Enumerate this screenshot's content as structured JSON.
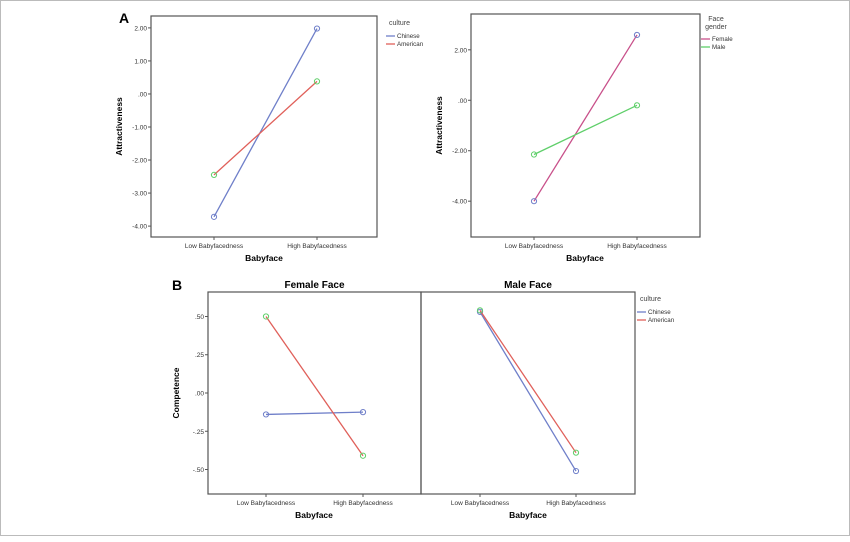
{
  "panel_labels": {
    "a": "A",
    "b": "B"
  },
  "chart_data": [
    {
      "type": "line",
      "panel": "A",
      "title": "",
      "xlabel": "Babyface",
      "ylabel": "Attractiveness",
      "categories": [
        "Low Babyfacedness",
        "High Babyfacedness"
      ],
      "yticks": [
        "2.00",
        "1.00",
        ".00",
        "-1.00",
        "-2.00",
        "-3.00",
        "-4.00"
      ],
      "ylim": [
        -4.33,
        2.36
      ],
      "legend_title": "culture",
      "legend_placement": "right",
      "series": [
        {
          "name": "Chinese",
          "values": [
            -3.72,
            1.98
          ],
          "color": "#6f7fc9",
          "marker_color": "#6f7fc9"
        },
        {
          "name": "American",
          "values": [
            -2.45,
            0.38
          ],
          "color": "#e0605a",
          "marker_color": "#5fcf6a"
        }
      ]
    },
    {
      "type": "line",
      "panel": "A",
      "title": "",
      "xlabel": "Babyface",
      "ylabel": "Attractiveness",
      "categories": [
        "Low Babyfacedness",
        "High Babyfacedness"
      ],
      "yticks": [
        "2.00",
        ".00",
        "-2.00",
        "-4.00"
      ],
      "ylim": [
        -5.42,
        3.42
      ],
      "legend_title": "Face gender",
      "legend_placement": "right",
      "series": [
        {
          "name": "Female",
          "values": [
            -4.0,
            2.59
          ],
          "color": "#c8508a",
          "marker_color": "#6f7fc9"
        },
        {
          "name": "Male",
          "values": [
            -2.15,
            -0.2
          ],
          "color": "#5fcf6a",
          "marker_color": "#5fcf6a"
        }
      ]
    },
    {
      "type": "line",
      "panel": "B",
      "title": "Female Face",
      "xlabel": "Babyface",
      "ylabel": "Competence",
      "categories": [
        "Low Babyfacedness",
        "High Babyfacedness"
      ],
      "yticks": [
        ".50",
        ".25",
        ".00",
        "-.25",
        "-.50"
      ],
      "ylim": [
        -0.66,
        0.66
      ],
      "series": [
        {
          "name": "Chinese",
          "values": [
            -0.14,
            -0.125
          ],
          "color": "#6f7fc9",
          "marker_color": "#6f7fc9"
        },
        {
          "name": "American",
          "values": [
            0.5,
            -0.41
          ],
          "color": "#e0605a",
          "marker_color": "#5fcf6a"
        }
      ]
    },
    {
      "type": "line",
      "panel": "B",
      "title": "Male Face",
      "xlabel": "Babyface",
      "ylabel": "",
      "categories": [
        "Low Babyfacedness",
        "High Babyfacedness"
      ],
      "ylim": [
        -0.66,
        0.66
      ],
      "legend_title": "culture",
      "legend_placement": "right",
      "series": [
        {
          "name": "Chinese",
          "values": [
            0.53,
            -0.51
          ],
          "color": "#6f7fc9",
          "marker_color": "#6f7fc9"
        },
        {
          "name": "American",
          "values": [
            0.54,
            -0.39
          ],
          "color": "#e0605a",
          "marker_color": "#5fcf6a"
        }
      ]
    }
  ]
}
